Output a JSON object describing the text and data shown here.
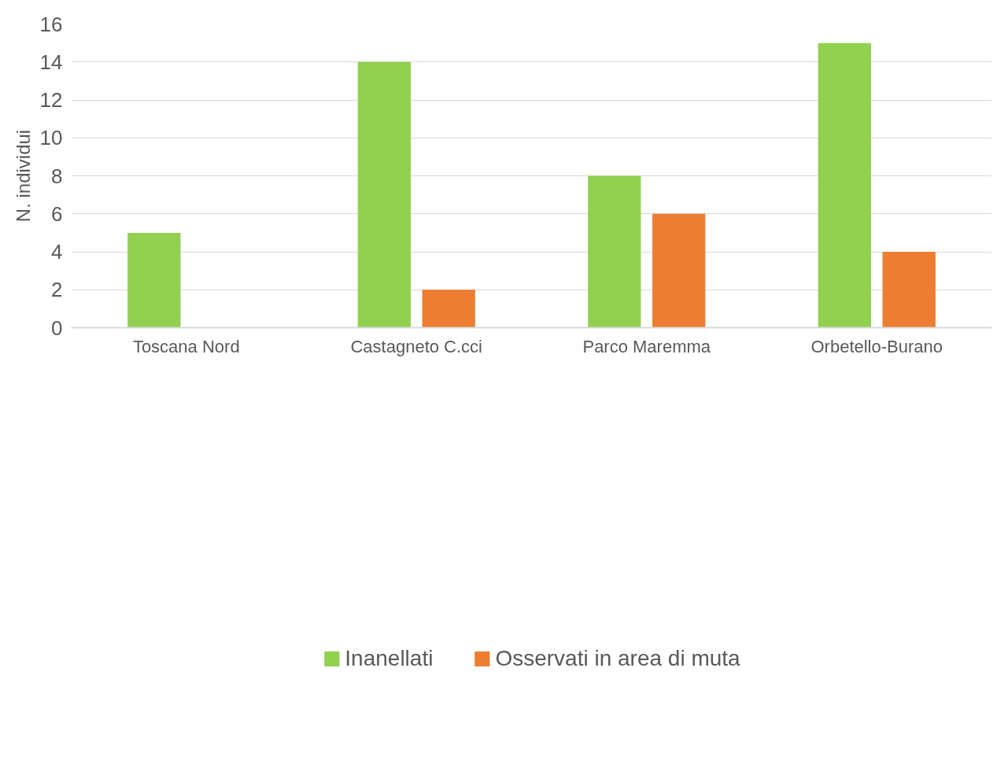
{
  "chart_data": {
    "type": "bar",
    "ylabel": "N. individui",
    "categories": [
      "Toscana Nord",
      "Castagneto C.cci",
      "Parco Maremma",
      "Orbetello-Burano"
    ],
    "series": [
      {
        "name": "Inanellati",
        "color": "#92d050",
        "values": [
          5,
          14,
          8,
          15
        ]
      },
      {
        "name": "Osservati in area di muta",
        "color": "#ed7d31",
        "values": [
          0,
          2,
          6,
          4
        ]
      }
    ],
    "ylim": [
      0,
      16
    ],
    "yticks": [
      0,
      2,
      4,
      6,
      8,
      10,
      12,
      14,
      16
    ],
    "grid": "y",
    "legend": "bottom"
  }
}
